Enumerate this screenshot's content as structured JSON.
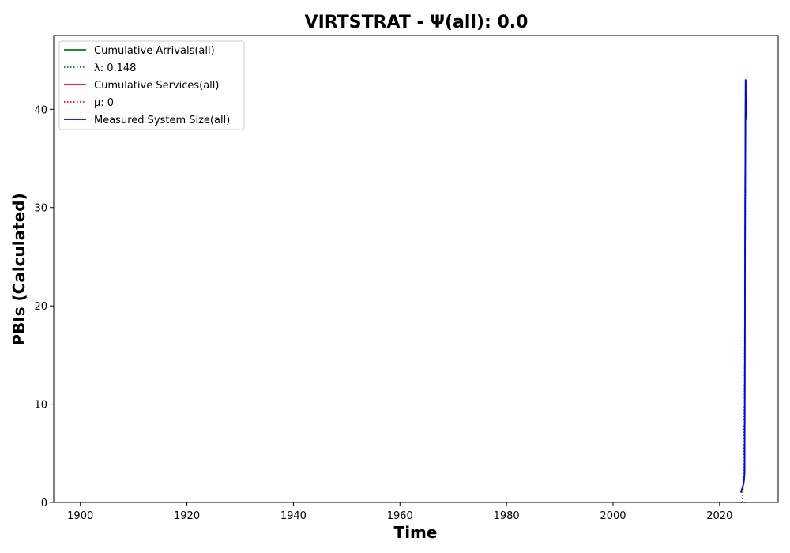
{
  "chart_data": {
    "type": "line",
    "title": "VIRTSTRAT -  Ψ(all): 0.0",
    "xlabel": "Time",
    "ylabel": "PBIs (Calculated)",
    "xlim": [
      1895,
      2031
    ],
    "ylim": [
      0,
      47.5
    ],
    "x_ticks": [
      1900,
      1920,
      1940,
      1960,
      1980,
      2000,
      2020
    ],
    "y_ticks": [
      0,
      10,
      20,
      30,
      40
    ],
    "grid": false,
    "legend_position": "top-left",
    "series": [
      {
        "name": "Cumulative Arrivals(all)",
        "style": "solid",
        "color": "#008000",
        "x": [
          2024.0,
          2024.3,
          2024.55,
          2024.7,
          2024.75,
          2024.8,
          2024.85,
          2024.9
        ],
        "y": [
          1,
          1.5,
          2,
          3,
          15,
          30,
          38,
          43
        ]
      },
      {
        "name": "λ: 0.148",
        "style": "dotted",
        "color": "#008000",
        "x": [
          2024.3,
          2024.5,
          2024.65,
          2024.8,
          2024.9
        ],
        "y": [
          0,
          3,
          10,
          25,
          40
        ]
      },
      {
        "name": "Cumulative Services(all)",
        "style": "solid",
        "color": "#ff0000",
        "x": [
          2024.9
        ],
        "y": [
          0
        ]
      },
      {
        "name": "μ: 0",
        "style": "dotted",
        "color": "#ff0000",
        "x": [
          2024.0,
          2024.9
        ],
        "y": [
          0,
          0
        ]
      },
      {
        "name": "Measured System Size(all)",
        "style": "solid",
        "color": "#0000ff",
        "x": [
          2024.0,
          2024.3,
          2024.55,
          2024.7,
          2024.75,
          2024.8,
          2024.85,
          2024.88,
          2024.92,
          2024.95,
          2024.9
        ],
        "y": [
          1,
          1.5,
          2,
          3,
          15,
          30,
          38,
          43,
          39,
          40,
          43
        ]
      }
    ]
  }
}
